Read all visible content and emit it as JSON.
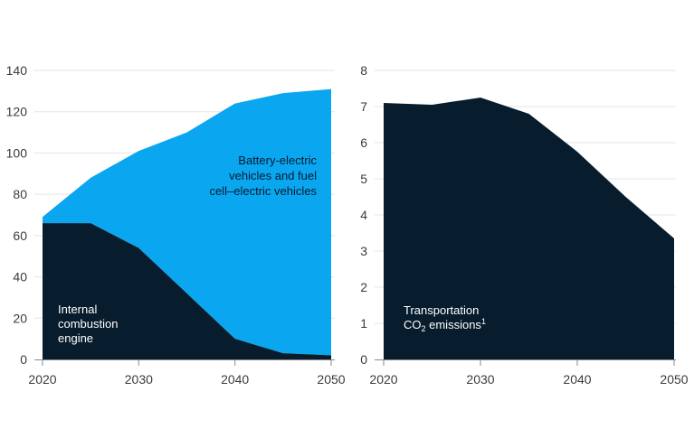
{
  "colors": {
    "bev_fcev": "#0aa6f0",
    "ice": "#071c2c",
    "co2": "#071c2c",
    "grid": "#e4e4e4",
    "axis": "#8a8a8a",
    "tick_text": "#3b3b3b",
    "label_on_light": "#071c2c",
    "label_on_dark": "#ffffff"
  },
  "chart_data": [
    {
      "type": "area",
      "stacked": true,
      "x": [
        2020,
        2025,
        2030,
        2035,
        2040,
        2045,
        2050
      ],
      "xticks": [
        2020,
        2030,
        2040,
        2050
      ],
      "yticks": [
        0,
        20,
        40,
        60,
        80,
        100,
        120,
        140
      ],
      "xlim": [
        2020,
        2050
      ],
      "ylim": [
        0,
        140
      ],
      "grid": true,
      "series": [
        {
          "key": "ice",
          "name": "Internal combustion engine",
          "label_lines": [
            "Internal",
            "combustion",
            "engine"
          ],
          "values": [
            66,
            66,
            54,
            32,
            10,
            3,
            2
          ]
        },
        {
          "key": "bev",
          "name": "Battery-electric vehicles and fuel cell–electric vehicles",
          "label_lines": [
            "Battery-electric",
            "vehicles and fuel",
            "cell–electric vehicles"
          ],
          "values": [
            3,
            22,
            47,
            78,
            114,
            126,
            129
          ]
        }
      ]
    },
    {
      "type": "area",
      "x": [
        2020,
        2025,
        2030,
        2035,
        2040,
        2045,
        2050
      ],
      "xticks": [
        2020,
        2030,
        2040,
        2050
      ],
      "yticks": [
        0,
        1,
        2,
        3,
        4,
        5,
        6,
        7,
        8
      ],
      "xlim": [
        2020,
        2050
      ],
      "ylim": [
        0,
        8
      ],
      "grid": true,
      "series": [
        {
          "key": "co2",
          "name": "Transportation CO2 emissions",
          "label_line1": "Transportation",
          "label_line2_prefix": "CO",
          "label_line2_sub": "2",
          "label_line2_suffix": " emissions",
          "label_line2_sup": "1",
          "values": [
            7.1,
            7.05,
            7.25,
            6.8,
            5.75,
            4.5,
            3.35
          ]
        }
      ]
    }
  ]
}
